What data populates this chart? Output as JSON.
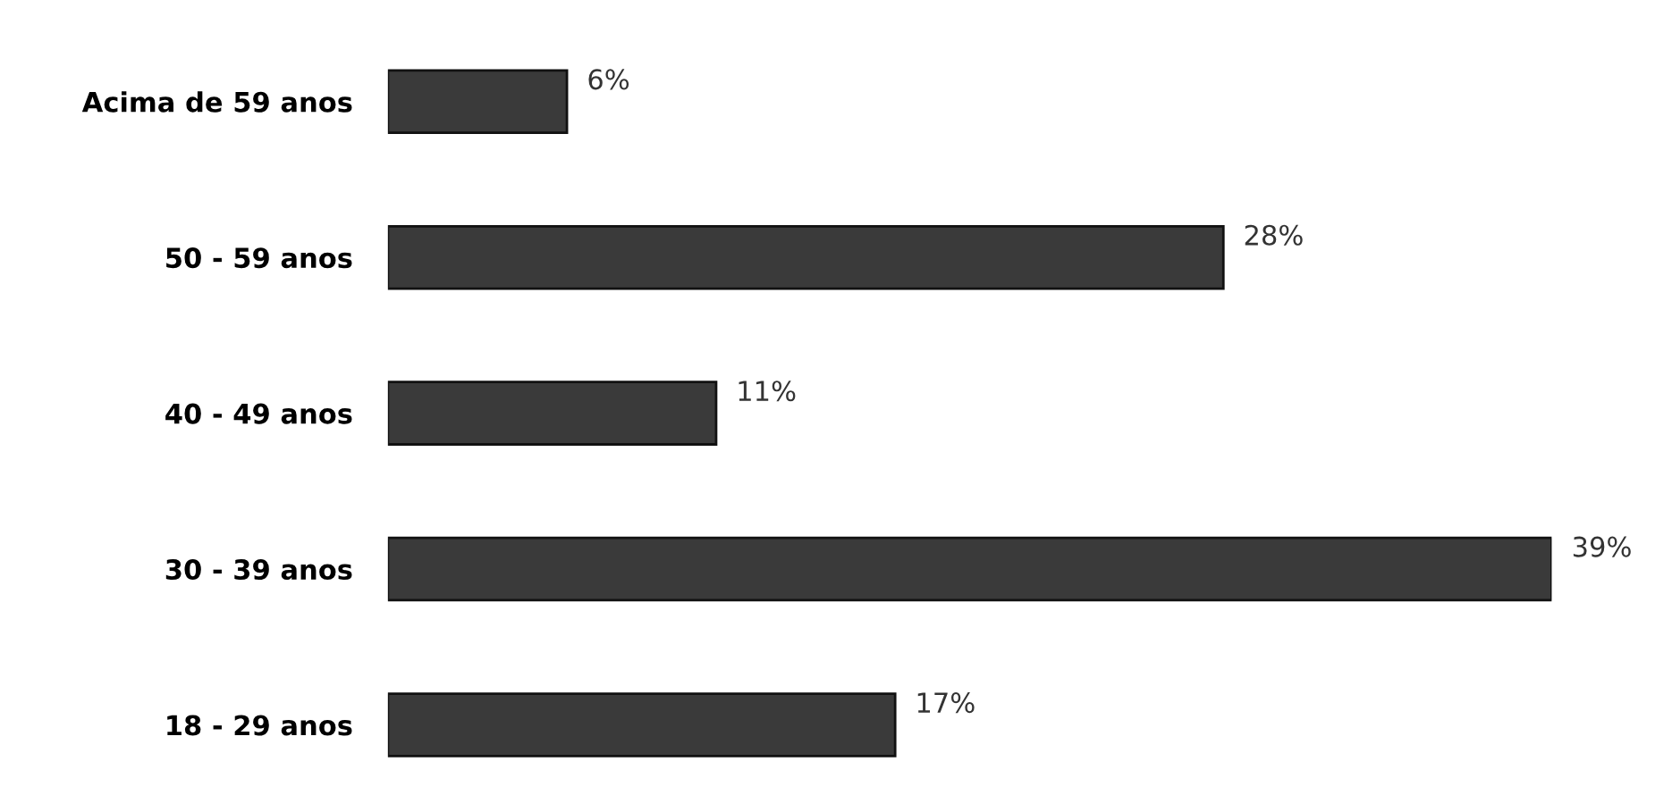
{
  "chart_data": {
    "type": "bar",
    "orientation": "horizontal",
    "categories": [
      "Acima de 59 anos",
      "50 - 59 anos",
      "40 - 49 anos",
      "30 - 39 anos",
      "18 - 29 anos"
    ],
    "values": [
      6,
      28,
      11,
      39,
      17
    ],
    "value_labels": [
      "6%",
      "28%",
      "11%",
      "39%",
      "17%"
    ],
    "color": "#3a3a3a",
    "grid": false,
    "legend": false,
    "tick_labels": "y"
  }
}
